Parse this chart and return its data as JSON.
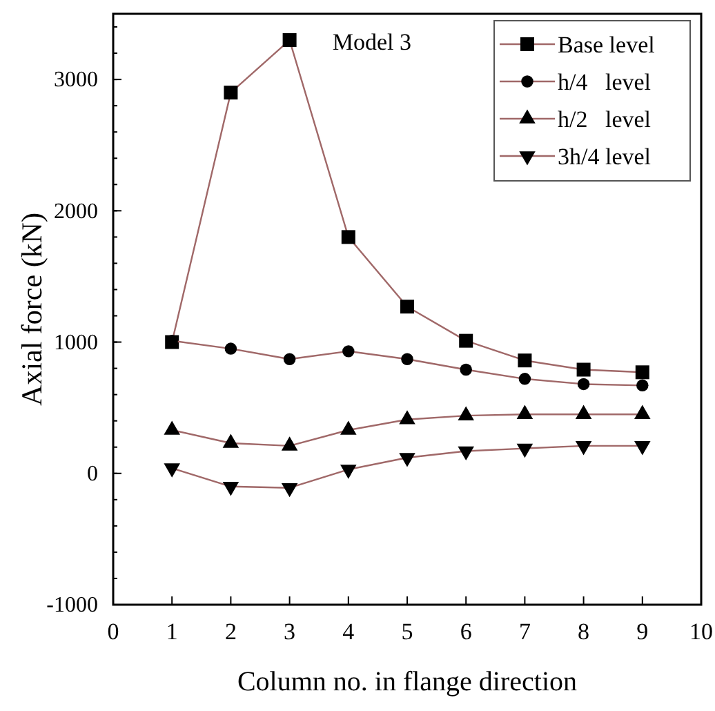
{
  "chart_data": {
    "type": "line",
    "xlabel": "Column no. in flange direction",
    "ylabel": "Axial force (kN)",
    "annotations": [
      "Model 3"
    ],
    "x": [
      1,
      2,
      3,
      4,
      5,
      6,
      7,
      8,
      9
    ],
    "xlim": [
      0,
      10
    ],
    "xticks": [
      0,
      1,
      2,
      3,
      4,
      5,
      6,
      7,
      8,
      9,
      10
    ],
    "ylim": [
      -1000,
      3500
    ],
    "yticks": [
      -1000,
      0,
      1000,
      2000,
      3000
    ],
    "grid": false,
    "legend": "top right",
    "line_style": "solid",
    "series": [
      {
        "name": "Base level",
        "color": "#a06868",
        "marker": "square",
        "values": [
          1000,
          2900,
          3300,
          1800,
          1270,
          1010,
          860,
          790,
          770
        ]
      },
      {
        "name": "h/4   level",
        "color": "#a06868",
        "marker": "circle",
        "values": [
          1010,
          950,
          870,
          930,
          870,
          790,
          720,
          680,
          670
        ]
      },
      {
        "name": "h/2   level",
        "color": "#a06868",
        "marker": "triangle",
        "values": [
          330,
          230,
          210,
          330,
          410,
          440,
          450,
          450,
          450
        ]
      },
      {
        "name": "3h/4 level",
        "color": "#a06868",
        "marker": "triangle-down",
        "values": [
          40,
          -100,
          -110,
          30,
          120,
          170,
          190,
          210,
          210
        ]
      }
    ]
  }
}
